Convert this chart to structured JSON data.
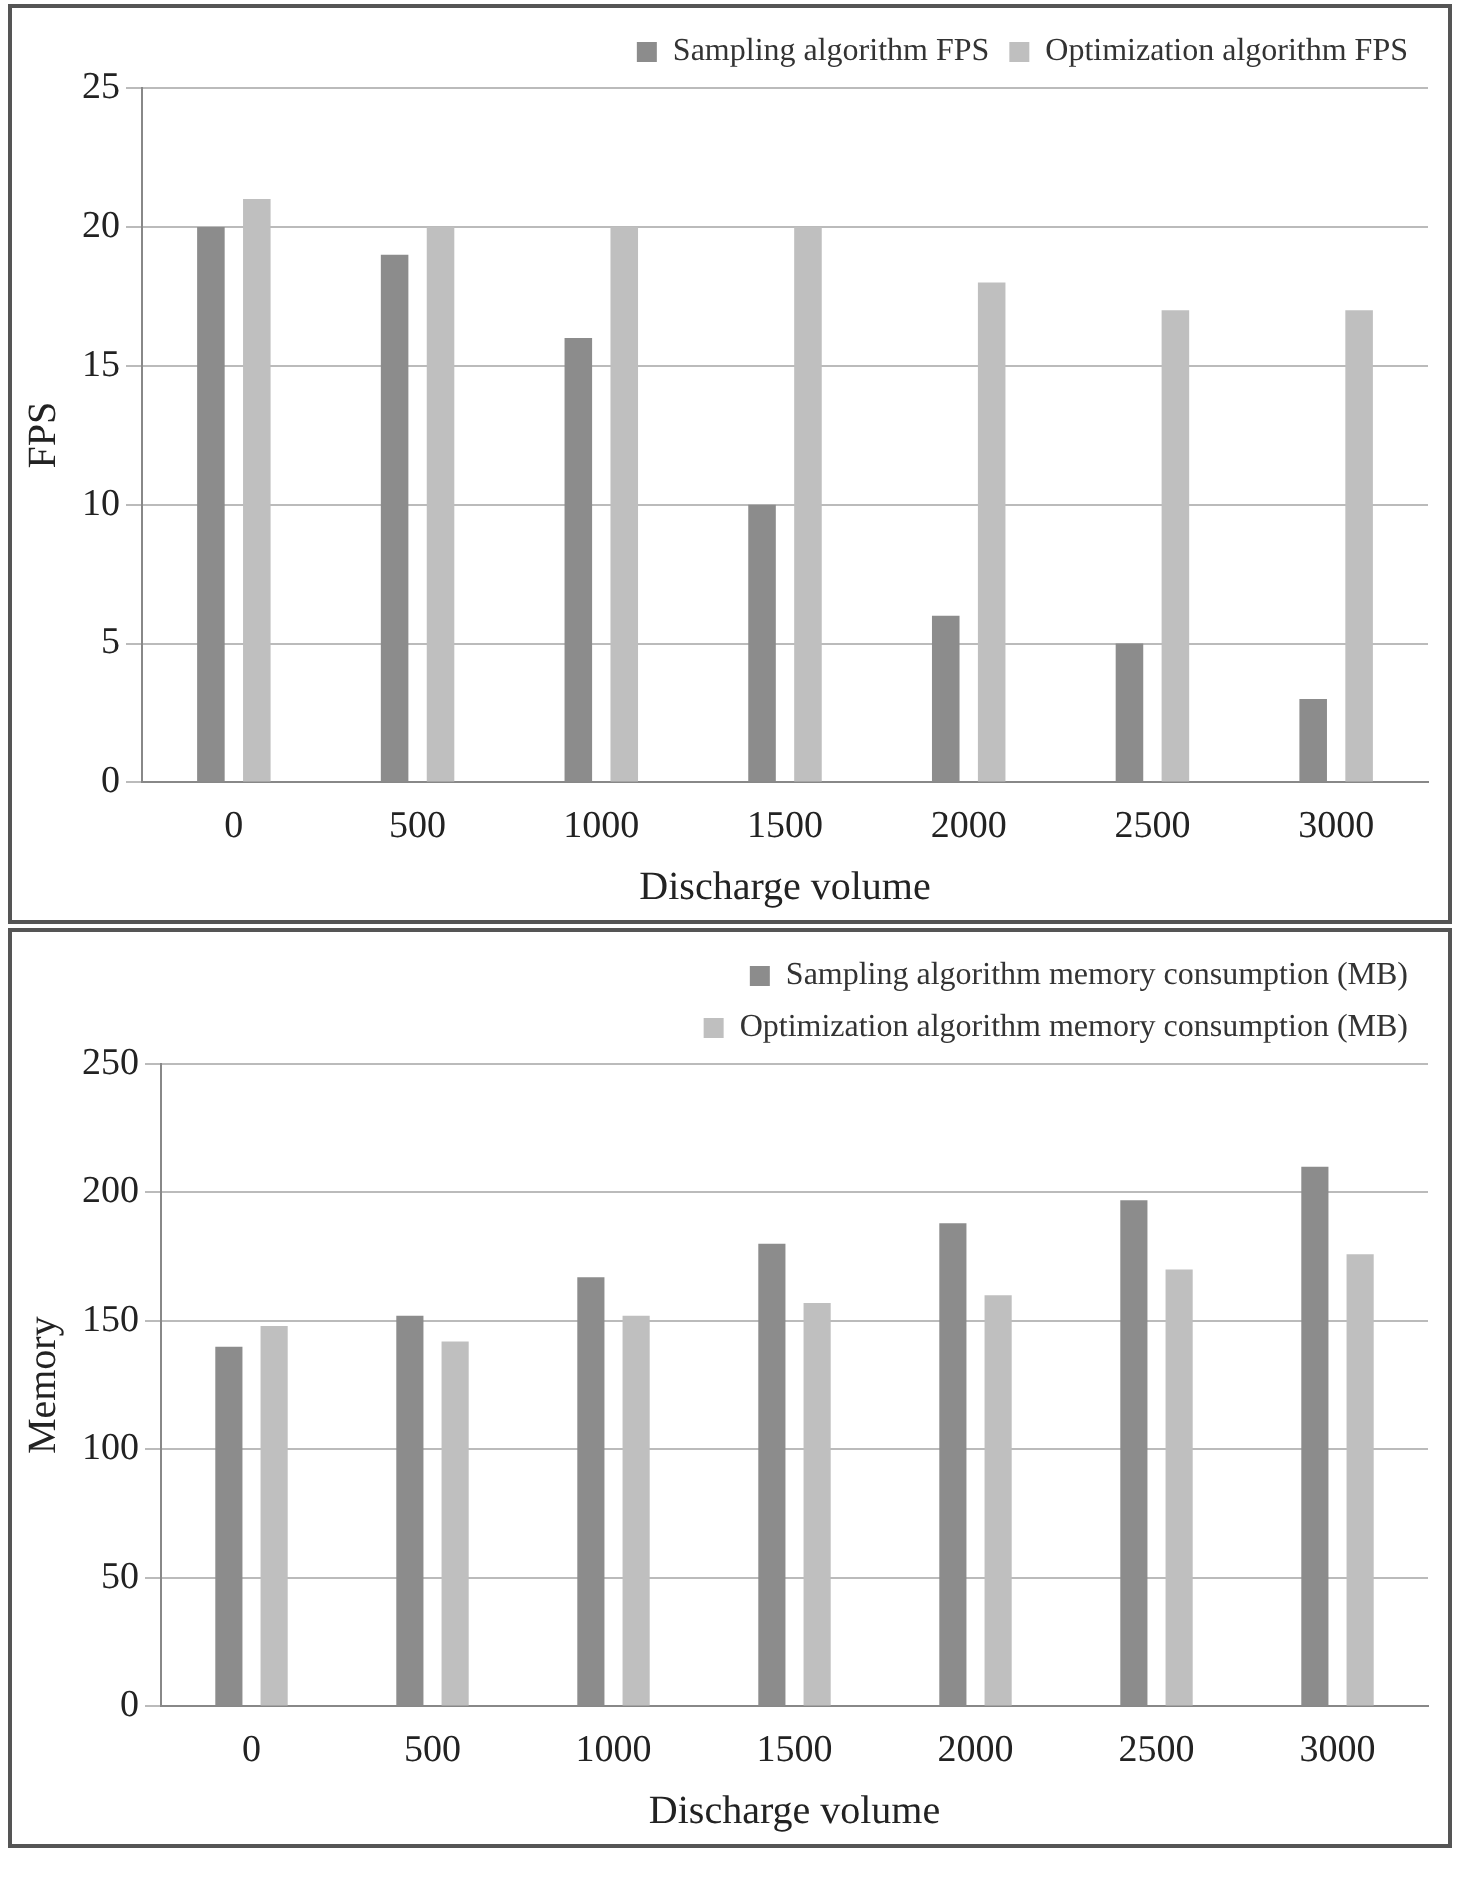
{
  "chart_data": [
    {
      "type": "bar",
      "xlabel": "Discharge volume",
      "ylabel": "FPS",
      "categories": [
        "0",
        "500",
        "1000",
        "1500",
        "2000",
        "2500",
        "3000"
      ],
      "series": [
        {
          "name": "Sampling algorithm FPS",
          "color": "#8c8c8c",
          "values": [
            20,
            19,
            16,
            10,
            6,
            5,
            3
          ]
        },
        {
          "name": "Optimization algorithm FPS",
          "color": "#bfbfbf",
          "values": [
            21,
            20,
            20,
            20,
            18,
            17,
            17
          ]
        }
      ],
      "ylim": [
        0,
        25
      ],
      "yticks": [
        0,
        5,
        10,
        15,
        20,
        25
      ],
      "grid": "y",
      "legend": "top right"
    },
    {
      "type": "bar",
      "xlabel": "Discharge volume",
      "ylabel": "Memory",
      "categories": [
        "0",
        "500",
        "1000",
        "1500",
        "2000",
        "2500",
        "3000"
      ],
      "series": [
        {
          "name": "Sampling algorithm memory consumption (MB)",
          "color": "#8c8c8c",
          "values": [
            140,
            152,
            167,
            180,
            188,
            197,
            210
          ]
        },
        {
          "name": "Optimization algorithm memory consumption (MB)",
          "color": "#bfbfbf",
          "values": [
            148,
            142,
            152,
            157,
            160,
            170,
            176
          ]
        }
      ],
      "ylim": [
        0,
        250
      ],
      "yticks": [
        0,
        50,
        100,
        150,
        200,
        250
      ],
      "grid": "y",
      "legend": "top right"
    }
  ]
}
